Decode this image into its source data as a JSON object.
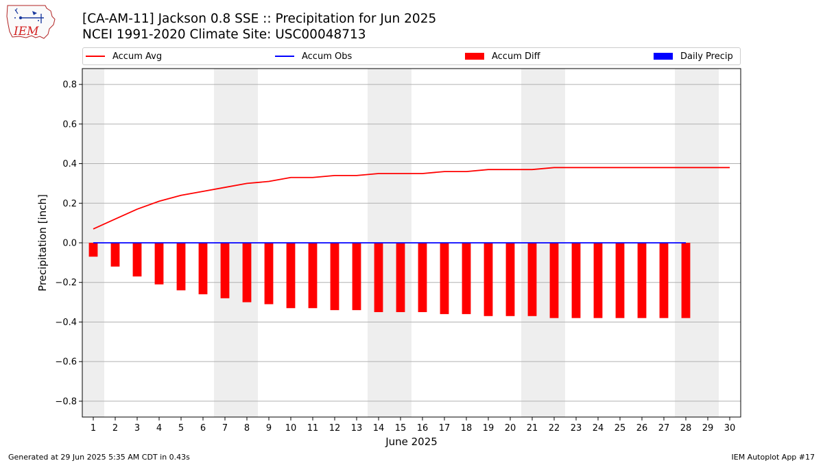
{
  "header": {
    "logo_text": "IEM",
    "title_line1": "[CA-AM-11] Jackson 0.8 SSE :: Precipitation for Jun 2025",
    "title_line2": "NCEI 1991-2020 Climate Site: USC00048713"
  },
  "legend": [
    {
      "label": "Accum Avg",
      "kind": "line",
      "color": "#ff0000"
    },
    {
      "label": "Accum Obs",
      "kind": "line",
      "color": "#0000ff"
    },
    {
      "label": "Accum Diff",
      "kind": "bar",
      "color": "#ff0000"
    },
    {
      "label": "Daily Precip",
      "kind": "bar",
      "color": "#0000ff"
    }
  ],
  "chart_data": {
    "type": "bar",
    "xlabel": "June 2025",
    "ylabel": "Precipitation [inch]",
    "ylim": [
      -0.88,
      0.88
    ],
    "yticks": [
      -0.8,
      -0.6,
      -0.4,
      -0.2,
      0.0,
      0.2,
      0.4,
      0.6,
      0.8
    ],
    "ytick_labels": [
      "−0.8",
      "−0.6",
      "−0.4",
      "−0.2",
      "0.0",
      "0.2",
      "0.4",
      "0.6",
      "0.8"
    ],
    "xlim": [
      0.5,
      30.5
    ],
    "x": [
      1,
      2,
      3,
      4,
      5,
      6,
      7,
      8,
      9,
      10,
      11,
      12,
      13,
      14,
      15,
      16,
      17,
      18,
      19,
      20,
      21,
      22,
      23,
      24,
      25,
      26,
      27,
      28,
      29,
      30
    ],
    "grid": "y",
    "weekend_shading": [
      [
        0.5,
        1.5
      ],
      [
        6.5,
        8.5
      ],
      [
        13.5,
        15.5
      ],
      [
        20.5,
        22.5
      ],
      [
        27.5,
        29.5
      ]
    ],
    "shade_color": "#eeeeee",
    "series": [
      {
        "name": "Accum Avg",
        "type": "line",
        "color": "#ff0000",
        "x": [
          1,
          2,
          3,
          4,
          5,
          6,
          7,
          8,
          9,
          10,
          11,
          12,
          13,
          14,
          15,
          16,
          17,
          18,
          19,
          20,
          21,
          22,
          23,
          24,
          25,
          26,
          27,
          28,
          29,
          30
        ],
        "values": [
          0.07,
          0.12,
          0.17,
          0.21,
          0.24,
          0.26,
          0.28,
          0.3,
          0.31,
          0.33,
          0.33,
          0.34,
          0.34,
          0.35,
          0.35,
          0.35,
          0.36,
          0.36,
          0.37,
          0.37,
          0.37,
          0.38,
          0.38,
          0.38,
          0.38,
          0.38,
          0.38,
          0.38,
          0.38,
          0.38
        ]
      },
      {
        "name": "Accum Obs",
        "type": "line",
        "color": "#0000ff",
        "x": [
          1,
          2,
          3,
          4,
          5,
          6,
          7,
          8,
          9,
          10,
          11,
          12,
          13,
          14,
          15,
          16,
          17,
          18,
          19,
          20,
          21,
          22,
          23,
          24,
          25,
          26,
          27,
          28
        ],
        "values": [
          0,
          0,
          0,
          0,
          0,
          0,
          0,
          0,
          0,
          0,
          0,
          0,
          0,
          0,
          0,
          0,
          0,
          0,
          0,
          0,
          0,
          0,
          0,
          0,
          0,
          0,
          0,
          0
        ]
      },
      {
        "name": "Accum Diff",
        "type": "bar",
        "color": "#ff0000",
        "x": [
          1,
          2,
          3,
          4,
          5,
          6,
          7,
          8,
          9,
          10,
          11,
          12,
          13,
          14,
          15,
          16,
          17,
          18,
          19,
          20,
          21,
          22,
          23,
          24,
          25,
          26,
          27,
          28
        ],
        "values": [
          -0.07,
          -0.12,
          -0.17,
          -0.21,
          -0.24,
          -0.26,
          -0.28,
          -0.3,
          -0.31,
          -0.33,
          -0.33,
          -0.34,
          -0.34,
          -0.35,
          -0.35,
          -0.35,
          -0.36,
          -0.36,
          -0.37,
          -0.37,
          -0.37,
          -0.38,
          -0.38,
          -0.38,
          -0.38,
          -0.38,
          -0.38,
          -0.38
        ]
      },
      {
        "name": "Daily Precip",
        "type": "bar",
        "color": "#0000ff",
        "x": [
          1,
          2,
          3,
          4,
          5,
          6,
          7,
          8,
          9,
          10,
          11,
          12,
          13,
          14,
          15,
          16,
          17,
          18,
          19,
          20,
          21,
          22,
          23,
          24,
          25,
          26,
          27,
          28
        ],
        "values": [
          0,
          0,
          0,
          0,
          0,
          0,
          0,
          0,
          0,
          0,
          0,
          0,
          0,
          0,
          0,
          0,
          0,
          0,
          0,
          0,
          0,
          0,
          0,
          0,
          0,
          0,
          0,
          0
        ]
      }
    ]
  },
  "footer": {
    "left": "Generated at 29 Jun 2025 5:35 AM CDT in 0.43s",
    "right": "IEM Autoplot App #17"
  }
}
